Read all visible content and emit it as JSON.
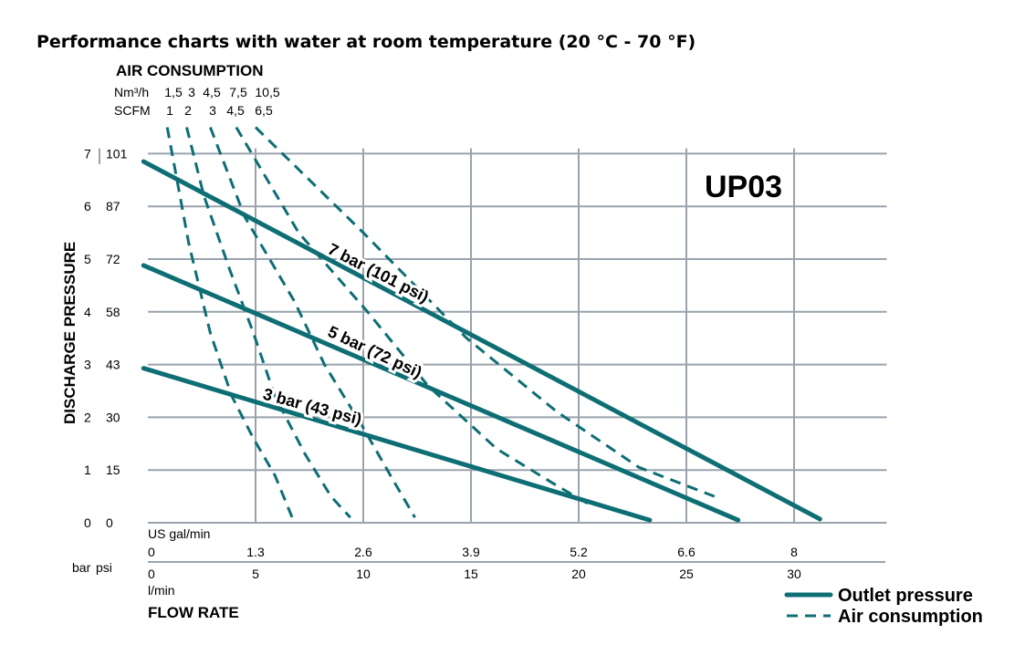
{
  "chart_data": {
    "type": "line",
    "title": "Performance charts with water at room temperature (20 °C - 70 °F)",
    "model": "UP03",
    "air_consumption": {
      "heading": "AIR CONSUMPTION",
      "unit_metric": "Nm³/h",
      "unit_imperial": "SCFM",
      "values_metric": [
        "1,5",
        "3",
        "4,5",
        "7,5",
        "10,5"
      ],
      "values_imperial": [
        "1",
        "2",
        "3",
        "4,5",
        "6,5"
      ]
    },
    "y_axis": {
      "label": "DISCHARGE PRESSURE",
      "unit_bar": "bar",
      "unit_psi": "psi",
      "range_bar": [
        0,
        7
      ],
      "ticks_bar": [
        "0",
        "1",
        "2",
        "3",
        "4",
        "5",
        "6",
        "7"
      ],
      "ticks_psi": [
        "0",
        "15",
        "30",
        "43",
        "58",
        "72",
        "87",
        "101"
      ]
    },
    "x_axis": {
      "label": "FLOW RATE",
      "unit_usgal": "US gal/min",
      "unit_lmin": "l/min",
      "range_lmin": [
        0,
        34
      ],
      "ticks_usgal": [
        {
          "label": "0",
          "lmin": 0
        },
        {
          "label": "1.3",
          "lmin": 5
        },
        {
          "label": "2.6",
          "lmin": 10
        },
        {
          "label": "3.9",
          "lmin": 15
        },
        {
          "label": "5.2",
          "lmin": 20
        },
        {
          "label": "6.6",
          "lmin": 25
        },
        {
          "label": "8",
          "lmin": 30
        }
      ],
      "ticks_lmin": [
        "0",
        "5",
        "10",
        "15",
        "20",
        "25",
        "30"
      ]
    },
    "outlet_series": [
      {
        "name": "7 bar (101 psi)",
        "points": [
          [
            -0.2,
            6.85
          ],
          [
            31.2,
            0.07
          ]
        ],
        "label_at": [
          8.3,
          5.12
        ],
        "label_angle": 27
      },
      {
        "name": "5 bar (72 psi)",
        "points": [
          [
            -0.2,
            4.88
          ],
          [
            27.4,
            0.05
          ]
        ],
        "label_at": [
          8.3,
          3.55
        ],
        "label_angle": 25
      },
      {
        "name": "3 bar (43 psi)",
        "points": [
          [
            -0.2,
            2.93
          ],
          [
            23.3,
            0.05
          ]
        ],
        "label_at": [
          5.3,
          2.35
        ],
        "label_angle": 15
      }
    ],
    "air_series": [
      {
        "name": "1,5",
        "points": [
          [
            0.9,
            7.5
          ],
          [
            1.9,
            5.3
          ],
          [
            2.9,
            3.6
          ],
          [
            3.9,
            2.4
          ],
          [
            4.9,
            1.6
          ],
          [
            5.9,
            0.9
          ],
          [
            6.7,
            0.1
          ]
        ]
      },
      {
        "name": "3",
        "points": [
          [
            1.8,
            7.5
          ],
          [
            2.6,
            6.2
          ],
          [
            3.8,
            4.8
          ],
          [
            4.9,
            3.6
          ],
          [
            5.9,
            2.4
          ],
          [
            7.3,
            1.3
          ],
          [
            8.5,
            0.5
          ],
          [
            9.4,
            0.1
          ]
        ]
      },
      {
        "name": "4,5",
        "points": [
          [
            2.9,
            7.5
          ],
          [
            4.5,
            5.8
          ],
          [
            6.8,
            4.2
          ],
          [
            8.2,
            3.0
          ],
          [
            10,
            1.8
          ],
          [
            11.4,
            0.8
          ],
          [
            12.4,
            0.1
          ]
        ]
      },
      {
        "name": "7,5",
        "points": [
          [
            4.1,
            7.5
          ],
          [
            7,
            5.5
          ],
          [
            10.2,
            4.0
          ],
          [
            13,
            2.6
          ],
          [
            16.2,
            1.4
          ],
          [
            19,
            0.7
          ],
          [
            20.7,
            0.3
          ]
        ]
      },
      {
        "name": "10,5",
        "points": [
          [
            5,
            7.5
          ],
          [
            10,
            5.5
          ],
          [
            14.8,
            3.5
          ],
          [
            19,
            2.1
          ],
          [
            22.8,
            1.05
          ],
          [
            26.3,
            0.5
          ]
        ]
      }
    ],
    "legend": {
      "outlet": "Outlet pressure",
      "air": "Air consumption"
    },
    "grid": true
  }
}
